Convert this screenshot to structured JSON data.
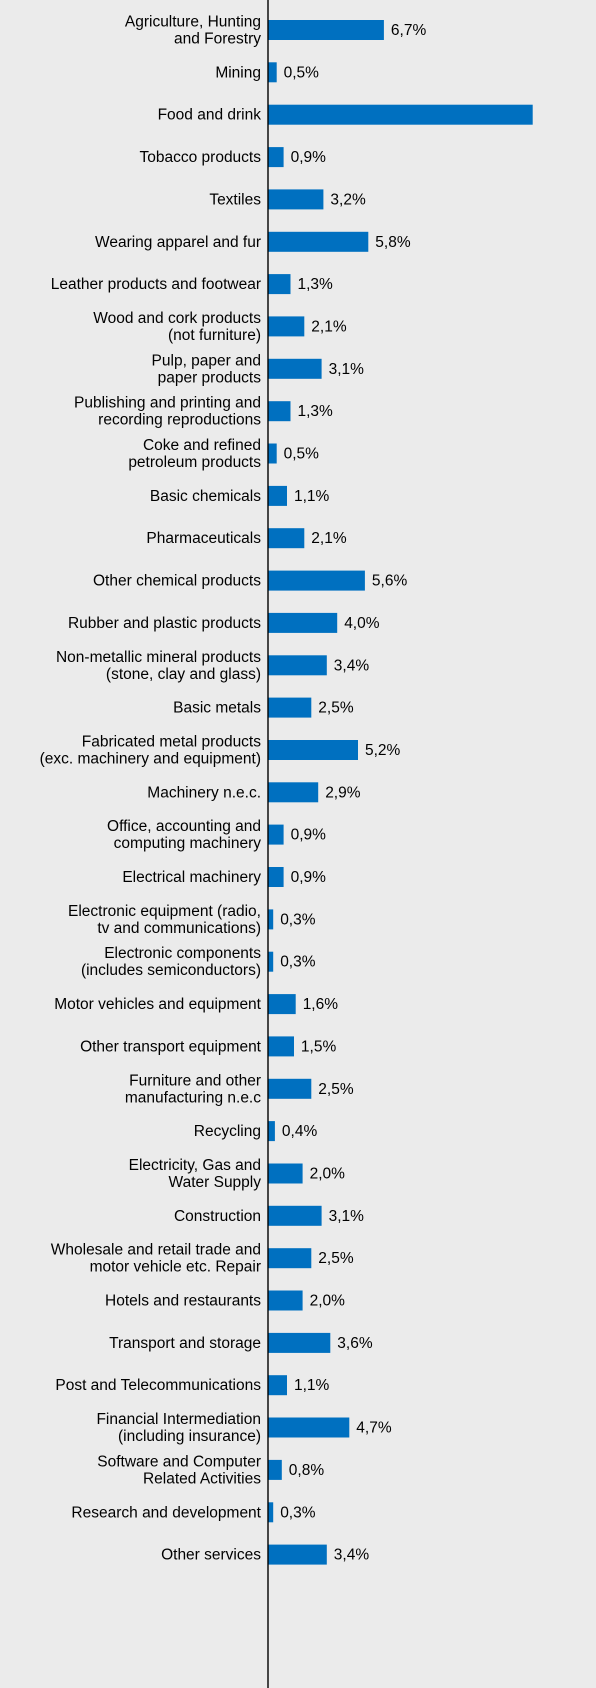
{
  "chart_data": {
    "type": "bar",
    "orientation": "horizontal",
    "value_suffix": "%",
    "decimal_separator": ",",
    "colors": {
      "bar": "#0070c0",
      "background": "#ebebeb",
      "axis": "#000000"
    },
    "categories": [
      "Agriculture, Hunting\nand Forestry",
      "Mining",
      "Food and drink",
      "Tobacco products",
      "Textiles",
      "Wearing apparel and fur",
      "Leather products and footwear",
      "Wood and cork products\n(not furniture)",
      "Pulp, paper and\npaper products",
      "Publishing and printing and\nrecording reproductions",
      "Coke and refined\npetroleum products",
      "Basic chemicals",
      "Pharmaceuticals",
      "Other chemical products",
      "Rubber and plastic products",
      "Non-metallic mineral products\n(stone, clay and glass)",
      "Basic metals",
      "Fabricated metal products\n(exc. machinery and equipment)",
      "Machinery n.e.c.",
      "Office, accounting and\ncomputing machinery",
      "Electrical machinery",
      "Electronic equipment (radio,\ntv and communications)",
      "Electronic components\n(includes semiconductors)",
      "Motor vehicles and equipment",
      "Other transport equipment",
      "Furniture and other\nmanufacturing n.e.c",
      "Recycling",
      "Electricity, Gas and\nWater Supply",
      "Construction",
      "Wholesale and retail trade and\nmotor vehicle etc. Repair",
      "Hotels and restaurants",
      "Transport and storage",
      "Post and Telecommunications",
      "Financial Intermediation\n(including insurance)",
      "Software and Computer\nRelated Activities",
      "Research and development",
      "Other services"
    ],
    "values": [
      6.7,
      0.5,
      15.3,
      0.9,
      3.2,
      5.8,
      1.3,
      2.1,
      3.1,
      1.3,
      0.5,
      1.1,
      2.1,
      5.6,
      4.0,
      3.4,
      2.5,
      5.2,
      2.9,
      0.9,
      0.9,
      0.3,
      0.3,
      1.6,
      1.5,
      2.5,
      0.4,
      2.0,
      3.1,
      2.5,
      2.0,
      3.6,
      1.1,
      4.7,
      0.8,
      0.3,
      3.4
    ],
    "data_labels": [
      "6,7%",
      "0,5%",
      "",
      "0,9%",
      "3,2%",
      "5,8%",
      "1,3%",
      "2,1%",
      "3,1%",
      "1,3%",
      "0,5%",
      "1,1%",
      "2,1%",
      "5,6%",
      "4,0%",
      "3,4%",
      "2,5%",
      "5,2%",
      "2,9%",
      "0,9%",
      "0,9%",
      "0,3%",
      "0,3%",
      "1,6%",
      "1,5%",
      "2,5%",
      "0,4%",
      "2,0%",
      "3,1%",
      "2,5%",
      "2,0%",
      "3,6%",
      "1,1%",
      "4,7%",
      "0,8%",
      "0,3%",
      "3,4%"
    ],
    "title": "",
    "xlabel": "",
    "ylabel": "",
    "grid": false,
    "legend": "none"
  }
}
